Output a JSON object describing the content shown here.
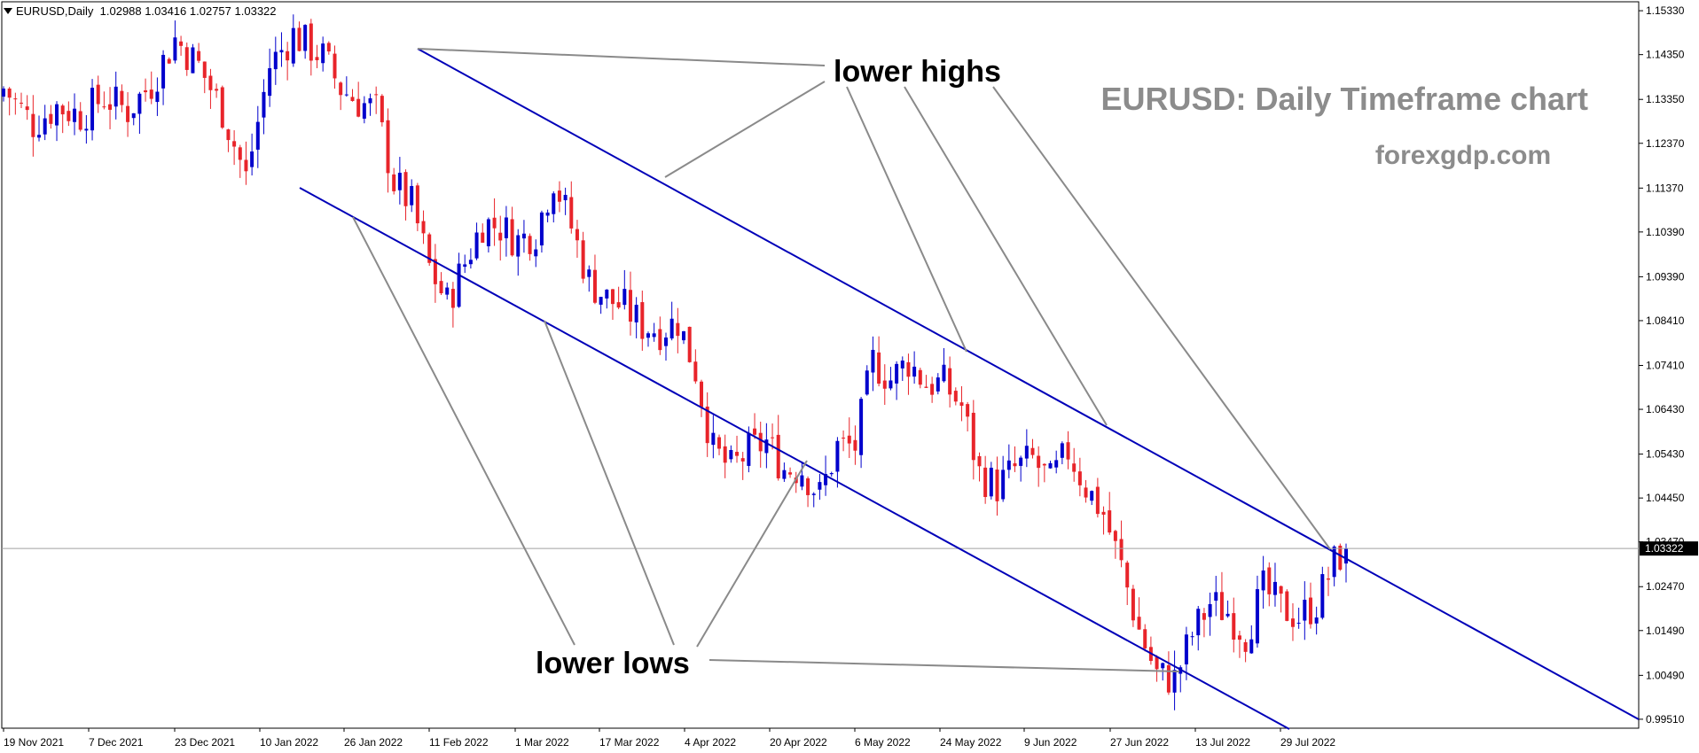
{
  "header": {
    "symbol": "EURUSD,Daily",
    "open": "1.02988",
    "high": "1.03416",
    "low": "1.02757",
    "close": "1.03322"
  },
  "title": "EURUSD: Daily Timeframe chart",
  "watermark": "forexgdp.com",
  "annotations": {
    "lower_highs": "lower highs",
    "lower_lows": "lower lows"
  },
  "colors": {
    "bull": "#0000cc",
    "bear": "#e8242a",
    "channel": "#0000b8",
    "annotation_line": "#8a8a8a",
    "title_text": "#8c8c8c"
  },
  "chart_data": {
    "type": "candlestick",
    "symbol": "EURUSD",
    "timeframe": "Daily",
    "current_price": 1.03322,
    "ylim": [
      0.9931,
      1.1553
    ],
    "y_ticks": [
      1.1533,
      1.1435,
      1.1335,
      1.1237,
      1.1137,
      1.1039,
      1.0939,
      1.0841,
      1.0741,
      1.0643,
      1.0543,
      1.0445,
      1.0347,
      1.0247,
      1.0149,
      1.0049,
      0.9951
    ],
    "y_tick_labels": [
      "1.15330",
      "1.14350",
      "1.13350",
      "1.12370",
      "1.11370",
      "1.10390",
      "1.09390",
      "1.08410",
      "1.07410",
      "1.06430",
      "1.05430",
      "1.04450",
      "1.03470",
      "1.02470",
      "1.01490",
      "1.00490",
      "0.99510"
    ],
    "x_tick_labels": [
      "19 Nov 2021",
      "7 Dec 2021",
      "23 Dec 2021",
      "10 Jan 2022",
      "26 Jan 2022",
      "11 Feb 2022",
      "1 Mar 2022",
      "17 Mar 2022",
      "4 Apr 2022",
      "20 Apr 2022",
      "6 May 2022",
      "24 May 2022",
      "9 Jun 2022",
      "27 Jun 2022",
      "13 Jul 2022",
      "29 Jul 2022"
    ],
    "close_trajectory": [
      [
        0,
        1.136
      ],
      [
        5,
        1.128
      ],
      [
        9,
        1.132
      ],
      [
        13,
        1.13
      ],
      [
        17,
        1.134
      ],
      [
        21,
        1.131
      ],
      [
        25,
        1.137
      ],
      [
        29,
        1.147
      ],
      [
        33,
        1.141
      ],
      [
        37,
        1.131
      ],
      [
        41,
        1.116
      ],
      [
        45,
        1.141
      ],
      [
        49,
        1.148
      ],
      [
        51,
        1.146
      ],
      [
        54,
        1.143
      ],
      [
        57,
        1.136
      ],
      [
        60,
        1.133
      ],
      [
        63,
        1.131
      ],
      [
        66,
        1.115
      ],
      [
        69,
        1.11
      ],
      [
        72,
        1.096
      ],
      [
        75,
        1.088
      ],
      [
        78,
        1.097
      ],
      [
        81,
        1.106
      ],
      [
        84,
        1.105
      ],
      [
        87,
        1.102
      ],
      [
        90,
        1.104
      ],
      [
        93,
        1.116
      ],
      [
        96,
        1.105
      ],
      [
        99,
        1.093
      ],
      [
        102,
        1.089
      ],
      [
        105,
        1.087
      ],
      [
        108,
        1.083
      ],
      [
        111,
        1.082
      ],
      [
        114,
        1.084
      ],
      [
        117,
        1.073
      ],
      [
        120,
        1.055
      ],
      [
        123,
        1.051
      ],
      [
        126,
        1.055
      ],
      [
        129,
        1.057
      ],
      [
        132,
        1.051
      ],
      [
        135,
        1.051
      ],
      [
        138,
        1.045
      ],
      [
        141,
        1.056
      ],
      [
        144,
        1.056
      ],
      [
        147,
        1.075
      ],
      [
        150,
        1.071
      ],
      [
        153,
        1.075
      ],
      [
        156,
        1.07
      ],
      [
        159,
        1.07
      ],
      [
        162,
        1.065
      ],
      [
        165,
        1.05
      ],
      [
        168,
        1.047
      ],
      [
        171,
        1.051
      ],
      [
        174,
        1.053
      ],
      [
        177,
        1.048
      ],
      [
        180,
        1.055
      ],
      [
        183,
        1.047
      ],
      [
        186,
        1.041
      ],
      [
        189,
        1.029
      ],
      [
        192,
        1.015
      ],
      [
        195,
        1.005
      ],
      [
        198,
        1.004
      ],
      [
        201,
        1.014
      ],
      [
        204,
        1.021
      ],
      [
        207,
        1.019
      ],
      [
        210,
        1.014
      ],
      [
        213,
        1.024
      ],
      [
        216,
        1.02
      ],
      [
        219,
        1.018
      ],
      [
        222,
        1.021
      ],
      [
        225,
        1.03
      ],
      [
        227,
        1.0332
      ]
    ]
  }
}
